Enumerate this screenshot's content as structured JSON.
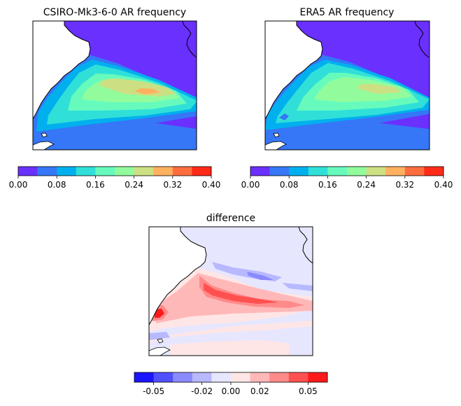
{
  "chart_data": [
    {
      "type": "heatmap",
      "title": "CSIRO-Mk3-6-0 AR frequency",
      "colorbar": {
        "levels": [
          0.0,
          0.04,
          0.08,
          0.12,
          0.16,
          0.2,
          0.24,
          0.28,
          0.32,
          0.36,
          0.4
        ],
        "colors": [
          "#6a30fe",
          "#3577f6",
          "#00b0ee",
          "#30e0d8",
          "#66fbbd",
          "#92fc9d",
          "#cce083",
          "#ffb160",
          "#ff6d3e",
          "#ff2a18"
        ],
        "tick_values": [
          0.0,
          0.08,
          0.16,
          0.24,
          0.32,
          0.4
        ],
        "tick_labels": [
          "0.00",
          "0.08",
          "0.16",
          "0.24",
          "0.32",
          "0.40"
        ]
      },
      "peak_value": 0.3
    },
    {
      "type": "heatmap",
      "title": "ERA5 AR frequency",
      "colorbar": {
        "levels": [
          0.0,
          0.04,
          0.08,
          0.12,
          0.16,
          0.2,
          0.24,
          0.28,
          0.32,
          0.36,
          0.4
        ],
        "colors": [
          "#6a30fe",
          "#3577f6",
          "#00b0ee",
          "#30e0d8",
          "#66fbbd",
          "#92fc9d",
          "#cce083",
          "#ffb160",
          "#ff6d3e",
          "#ff2a18"
        ],
        "tick_values": [
          0.0,
          0.08,
          0.16,
          0.24,
          0.32,
          0.4
        ],
        "tick_labels": [
          "0.00",
          "0.08",
          "0.16",
          "0.24",
          "0.32",
          "0.40"
        ]
      },
      "peak_value": 0.27
    },
    {
      "type": "heatmap",
      "title": "difference",
      "colorbar": {
        "levels": [
          -0.06,
          -0.05,
          -0.035,
          -0.02,
          -0.01,
          0.0,
          0.01,
          0.02,
          0.035,
          0.05,
          0.06
        ],
        "colors": [
          "#1a14ff",
          "#5050ff",
          "#8a8aff",
          "#b8b8ff",
          "#e6e6ff",
          "#ffe6e6",
          "#ffb8b8",
          "#ff8a8a",
          "#ff5050",
          "#ff1a1a"
        ],
        "tick_values": [
          -0.05,
          -0.02,
          0.0,
          0.02,
          0.05
        ],
        "tick_labels": [
          "-0.05",
          "-0.02",
          "0.00",
          "0.02",
          "0.05"
        ]
      }
    }
  ]
}
